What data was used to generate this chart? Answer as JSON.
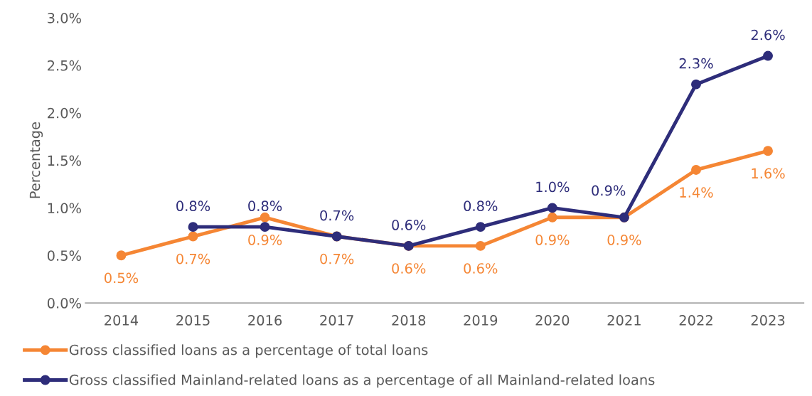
{
  "chart_data": {
    "type": "line",
    "ylabel": "Percentage",
    "categories": [
      "2014",
      "2015",
      "2016",
      "2017",
      "2018",
      "2019",
      "2020",
      "2021",
      "2022",
      "2023"
    ],
    "series": [
      {
        "name": "Gross classified loans as a percentage of total loans",
        "color": "#f58634",
        "values": [
          0.5,
          0.7,
          0.9,
          0.7,
          0.6,
          0.6,
          0.9,
          0.9,
          1.4,
          1.6
        ],
        "value_labels": [
          "0.5%",
          "0.7%",
          "0.9%",
          "0.7%",
          "0.6%",
          "0.6%",
          "0.9%",
          "0.9%",
          "1.4%",
          "1.6%"
        ]
      },
      {
        "name": "Gross classified Mainland-related loans as a percentage of all Mainland-related loans",
        "color": "#2e2d7a",
        "values": [
          null,
          0.8,
          0.8,
          0.7,
          0.6,
          0.8,
          1.0,
          0.9,
          2.3,
          2.6
        ],
        "value_labels": [
          null,
          "0.8%",
          "0.8%",
          "0.7%",
          "0.6%",
          "0.8%",
          "1.0%",
          "0.9%",
          "2.3%",
          "2.6%"
        ]
      }
    ],
    "ylim": [
      0,
      3.0
    ],
    "yticks": [
      {
        "value": 0,
        "label": "0.0%"
      },
      {
        "value": 0.5,
        "label": "0.5%"
      },
      {
        "value": 1.0,
        "label": "1.0%"
      },
      {
        "value": 1.5,
        "label": "1.5%"
      },
      {
        "value": 2.0,
        "label": "2.0%"
      },
      {
        "value": 2.5,
        "label": "2.5%"
      },
      {
        "value": 3.0,
        "label": "3.0%"
      }
    ],
    "marker": "circle",
    "line_style": "solid",
    "legend": "bottom",
    "grid": false
  }
}
